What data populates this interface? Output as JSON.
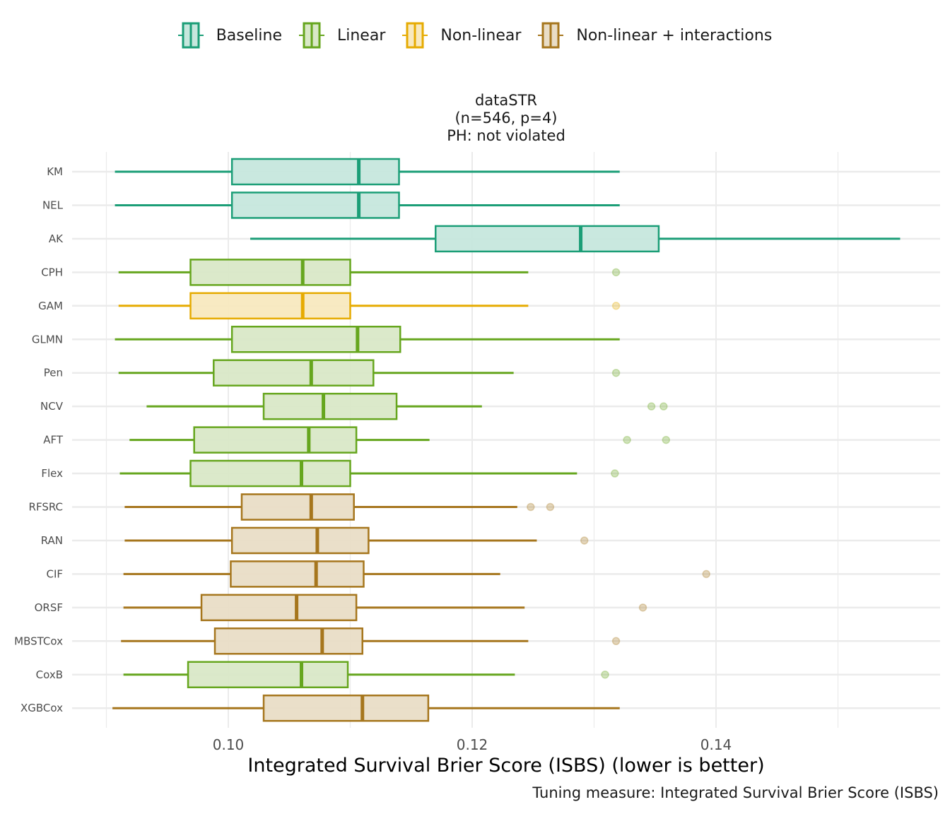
{
  "legend": {
    "items": [
      {
        "label": "Baseline",
        "key": "baseline"
      },
      {
        "label": "Linear",
        "key": "linear"
      },
      {
        "label": "Non-linear",
        "key": "nonlinear"
      },
      {
        "label": "Non-linear + interactions",
        "key": "nonlinear_int"
      }
    ]
  },
  "title": {
    "line1": "dataSTR",
    "line2": "(n=546, p=4)",
    "line3": "PH: not violated"
  },
  "colors": {
    "baseline": {
      "stroke": "#1b9e77",
      "fill": "#c6e7dd"
    },
    "linear": {
      "stroke": "#66a61e",
      "fill": "#d9e8c7"
    },
    "nonlinear": {
      "stroke": "#e6ab02",
      "fill": "#f8e9bf"
    },
    "nonlinear_int": {
      "stroke": "#a6761d",
      "fill": "#e9ddc6"
    },
    "grid": "#ebebeb"
  },
  "chart_data": {
    "type": "boxplot",
    "orientation": "horizontal",
    "title": "dataSTR (n=546, p=4) PH: not violated",
    "xlabel": "Integrated Survival Brier Score (ISBS) (lower is better)",
    "caption": "Tuning measure: Integrated Survival Brier Score (ISBS)",
    "xlim": [
      0.087,
      0.158
    ],
    "xticks": [
      0.1,
      0.12,
      0.14
    ],
    "xtick_labels": [
      "0.10",
      "0.12",
      "0.14"
    ],
    "minor_gridlines": [
      0.09,
      0.11,
      0.13,
      0.15
    ],
    "grid": true,
    "legend_position": "top",
    "series": [
      {
        "name": "KM",
        "group": "baseline",
        "whisker_low": 0.0907,
        "q1": 0.1003,
        "median": 0.1107,
        "q3": 0.114,
        "whisker_high": 0.1321,
        "outliers": []
      },
      {
        "name": "NEL",
        "group": "baseline",
        "whisker_low": 0.0907,
        "q1": 0.1003,
        "median": 0.1107,
        "q3": 0.114,
        "whisker_high": 0.1321,
        "outliers": []
      },
      {
        "name": "AK",
        "group": "baseline",
        "whisker_low": 0.1018,
        "q1": 0.117,
        "median": 0.1289,
        "q3": 0.1353,
        "whisker_high": 0.1551,
        "outliers": []
      },
      {
        "name": "CPH",
        "group": "linear",
        "whisker_low": 0.091,
        "q1": 0.0969,
        "median": 0.1061,
        "q3": 0.11,
        "whisker_high": 0.1246,
        "outliers": [
          0.1318
        ]
      },
      {
        "name": "GAM",
        "group": "nonlinear",
        "whisker_low": 0.091,
        "q1": 0.0969,
        "median": 0.1061,
        "q3": 0.11,
        "whisker_high": 0.1246,
        "outliers": [
          0.1318
        ]
      },
      {
        "name": "GLMN",
        "group": "linear",
        "whisker_low": 0.0907,
        "q1": 0.1003,
        "median": 0.1106,
        "q3": 0.1141,
        "whisker_high": 0.1321,
        "outliers": []
      },
      {
        "name": "Pen",
        "group": "linear",
        "whisker_low": 0.091,
        "q1": 0.0988,
        "median": 0.1068,
        "q3": 0.1119,
        "whisker_high": 0.1234,
        "outliers": [
          0.1318
        ]
      },
      {
        "name": "NCV",
        "group": "linear",
        "whisker_low": 0.0933,
        "q1": 0.1029,
        "median": 0.1078,
        "q3": 0.1138,
        "whisker_high": 0.1208,
        "outliers": [
          0.1347,
          0.1357
        ]
      },
      {
        "name": "AFT",
        "group": "linear",
        "whisker_low": 0.0919,
        "q1": 0.0972,
        "median": 0.1066,
        "q3": 0.1105,
        "whisker_high": 0.1165,
        "outliers": [
          0.1327,
          0.1359
        ]
      },
      {
        "name": "Flex",
        "group": "linear",
        "whisker_low": 0.0911,
        "q1": 0.0969,
        "median": 0.106,
        "q3": 0.11,
        "whisker_high": 0.1286,
        "outliers": [
          0.1317
        ]
      },
      {
        "name": "RFSRC",
        "group": "nonlinear_int",
        "whisker_low": 0.0915,
        "q1": 0.1011,
        "median": 0.1068,
        "q3": 0.1103,
        "whisker_high": 0.1237,
        "outliers": [
          0.1248,
          0.1264
        ]
      },
      {
        "name": "RAN",
        "group": "nonlinear_int",
        "whisker_low": 0.0915,
        "q1": 0.1003,
        "median": 0.1073,
        "q3": 0.1115,
        "whisker_high": 0.1253,
        "outliers": [
          0.1292
        ]
      },
      {
        "name": "CIF",
        "group": "nonlinear_int",
        "whisker_low": 0.0914,
        "q1": 0.1002,
        "median": 0.1072,
        "q3": 0.1111,
        "whisker_high": 0.1223,
        "outliers": [
          0.1392
        ]
      },
      {
        "name": "ORSF",
        "group": "nonlinear_int",
        "whisker_low": 0.0914,
        "q1": 0.0978,
        "median": 0.1056,
        "q3": 0.1105,
        "whisker_high": 0.1243,
        "outliers": [
          0.134
        ]
      },
      {
        "name": "MBSTCox",
        "group": "nonlinear_int",
        "whisker_low": 0.0912,
        "q1": 0.0989,
        "median": 0.1077,
        "q3": 0.111,
        "whisker_high": 0.1246,
        "outliers": [
          0.1318
        ]
      },
      {
        "name": "CoxB",
        "group": "linear",
        "whisker_low": 0.0914,
        "q1": 0.0967,
        "median": 0.106,
        "q3": 0.1098,
        "whisker_high": 0.1235,
        "outliers": [
          0.1309
        ]
      },
      {
        "name": "XGBCox",
        "group": "nonlinear_int",
        "whisker_low": 0.0905,
        "q1": 0.1029,
        "median": 0.111,
        "q3": 0.1164,
        "whisker_high": 0.1321,
        "outliers": []
      }
    ]
  }
}
